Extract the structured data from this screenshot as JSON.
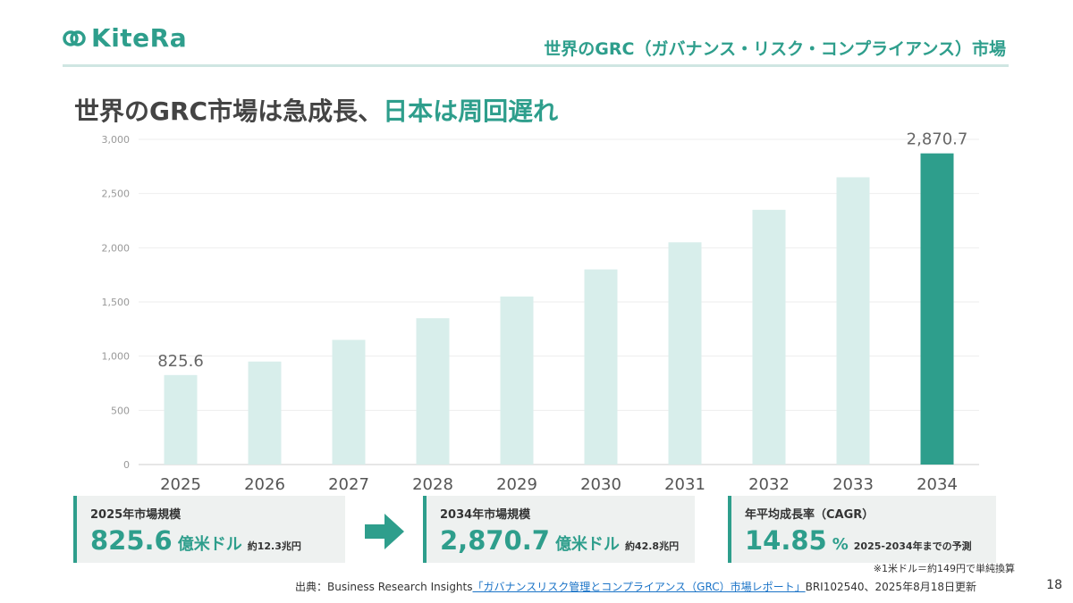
{
  "header": {
    "logo_text": "KiteRa",
    "title": "世界のGRC（ガバナンス・リスク・コンプライアンス）市場"
  },
  "headline": {
    "part1": "世界のGRC市場は急成長、",
    "part2": "日本は周回遅れ"
  },
  "chart_data": {
    "type": "bar",
    "categories": [
      "2025",
      "2026",
      "2027",
      "2028",
      "2029",
      "2030",
      "2031",
      "2032",
      "2033",
      "2034"
    ],
    "values": [
      825.6,
      950,
      1150,
      1350,
      1550,
      1800,
      2050,
      2350,
      2650,
      2870.7
    ],
    "ylim": [
      0,
      3000
    ],
    "yticks": [
      "0",
      "500",
      "1,000",
      "1,500",
      "2,000",
      "2,500",
      "3,000"
    ],
    "data_labels": {
      "2025": "825.6",
      "2034": "2,870.7"
    },
    "grid": true,
    "colors": {
      "bar": "#d8eeeb",
      "highlight": "#2e9e8c"
    }
  },
  "cards": [
    {
      "title": "2025年市場規模",
      "value": "825.6",
      "unit": "億米ドル",
      "note": "約12.3兆円"
    },
    {
      "title": "2034年市場規模",
      "value": "2,870.7",
      "unit": "億米ドル",
      "note": "約42.8兆円"
    },
    {
      "title": "年平均成長率（CAGR）",
      "value": "14.85",
      "unit": "%",
      "note": "2025-2034年までの予測"
    }
  ],
  "footnote": "※1米ドル＝約149円で単純換算",
  "source": {
    "prefix": "出典：Business Research Insights",
    "link": "「ガバナンスリスク管理とコンプライアンス（GRC）市場レポート」",
    "suffix": "BRI102540、2025年8月18日更新"
  },
  "page_number": "18"
}
